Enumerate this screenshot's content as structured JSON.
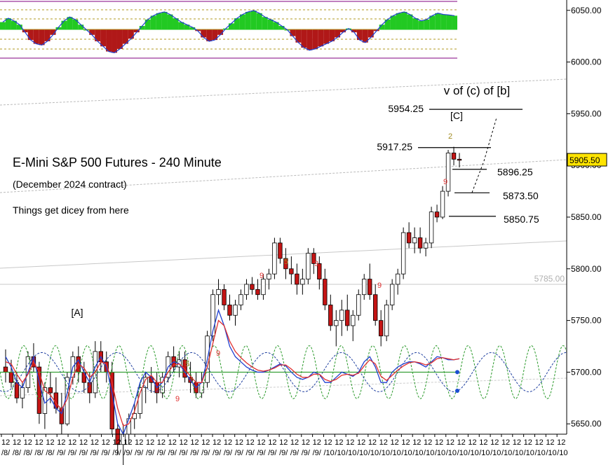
{
  "chart_data": {
    "type": "candlestick",
    "title": "E-Mini S&P 500 Futures - 240 Minute",
    "subtitle": "(December 2024 contract)",
    "note": "Things get dicey from here",
    "ylim": [
      5640,
      6060
    ],
    "y_ticks": [
      6050,
      6000,
      5950,
      5900,
      5850,
      5800,
      5750,
      5700,
      5650
    ],
    "y_tick_labels": [
      "6050.00",
      "6000.00",
      "5950.00",
      "5900.00",
      "5850.00",
      "5800.00",
      "5750.00",
      "5700.00",
      "5650.00"
    ],
    "current_price": "5905.50",
    "reference_level": {
      "value": 5785,
      "label": "5785.00"
    },
    "x_tick_labels": [
      "12/8/",
      "12/8/",
      "12/8/",
      "12/8/",
      "12/8/",
      "12/9/",
      "12/9/",
      "12/9/",
      "12/9/",
      "12/9/",
      "12/9/",
      "12/9/",
      "12/9/",
      "12/9/",
      "12/9/",
      "12/9/",
      "12/9/",
      "12/9/",
      "12/9/",
      "12/9/",
      "12/9/",
      "12/9/",
      "12/9/",
      "12/9/",
      "12/9/",
      "12/9/",
      "12/9/",
      "12/9/",
      "12/9/",
      "12/10",
      "12/10",
      "12/10",
      "12/10",
      "12/10",
      "12/10",
      "12/10",
      "12/10",
      "12/10",
      "12/10",
      "12/10",
      "12/10",
      "12/10",
      "12/10",
      "12/10",
      "12/10",
      "12/10",
      "12/10",
      "12/10",
      "12/10",
      "12/10",
      "12/10"
    ],
    "wave_labels": [
      {
        "text": "v of (c) of [b]"
      },
      {
        "text": "[C]"
      },
      {
        "text": "[A]"
      }
    ],
    "target_levels": [
      {
        "label": "5954.25",
        "value": 5954.25
      },
      {
        "label": "5917.25",
        "value": 5917.25
      },
      {
        "label": "5896.25",
        "value": 5896.25
      },
      {
        "label": "5873.50",
        "value": 5873.5
      },
      {
        "label": "5850.75",
        "value": 5850.75
      }
    ],
    "td_counts": [
      {
        "text": "9",
        "color": "#e03030"
      },
      {
        "text": "9",
        "color": "#e03030"
      },
      {
        "text": "5",
        "color": "#a08a20"
      },
      {
        "text": "9",
        "color": "#e03030"
      },
      {
        "text": "2",
        "color": "#a08a20"
      },
      {
        "text": "9",
        "color": "#e03030"
      },
      {
        "text": "9",
        "color": "#e03030"
      },
      {
        "text": "5",
        "color": "#a08a20"
      },
      {
        "text": "9",
        "color": "#e03030"
      }
    ],
    "candles": [
      [
        5705,
        5722,
        5690,
        5700
      ],
      [
        5700,
        5712,
        5685,
        5690
      ],
      [
        5690,
        5700,
        5670,
        5675
      ],
      [
        5675,
        5690,
        5665,
        5685
      ],
      [
        5685,
        5720,
        5680,
        5715
      ],
      [
        5715,
        5728,
        5700,
        5705
      ],
      [
        5705,
        5710,
        5650,
        5660
      ],
      [
        5660,
        5690,
        5645,
        5685
      ],
      [
        5685,
        5700,
        5670,
        5680
      ],
      [
        5680,
        5695,
        5660,
        5665
      ],
      [
        5665,
        5680,
        5640,
        5650
      ],
      [
        5650,
        5700,
        5648,
        5695
      ],
      [
        5695,
        5720,
        5688,
        5715
      ],
      [
        5715,
        5725,
        5690,
        5700
      ],
      [
        5700,
        5710,
        5680,
        5690
      ],
      [
        5690,
        5700,
        5670,
        5680
      ],
      [
        5680,
        5730,
        5675,
        5720
      ],
      [
        5720,
        5730,
        5700,
        5710
      ],
      [
        5710,
        5720,
        5690,
        5700
      ],
      [
        5700,
        5710,
        5640,
        5645
      ],
      [
        5645,
        5650,
        5620,
        5630
      ],
      [
        5630,
        5650,
        5600,
        5640
      ],
      [
        5640,
        5660,
        5630,
        5655
      ],
      [
        5655,
        5670,
        5645,
        5660
      ],
      [
        5660,
        5690,
        5655,
        5685
      ],
      [
        5685,
        5700,
        5670,
        5695
      ],
      [
        5695,
        5705,
        5680,
        5690
      ],
      [
        5690,
        5700,
        5670,
        5680
      ],
      [
        5680,
        5700,
        5675,
        5695
      ],
      [
        5695,
        5720,
        5690,
        5715
      ],
      [
        5715,
        5725,
        5700,
        5705
      ],
      [
        5705,
        5720,
        5695,
        5712
      ],
      [
        5712,
        5720,
        5690,
        5695
      ],
      [
        5695,
        5710,
        5680,
        5690
      ],
      [
        5690,
        5700,
        5675,
        5680
      ],
      [
        5680,
        5700,
        5675,
        5690
      ],
      [
        5690,
        5740,
        5685,
        5735
      ],
      [
        5735,
        5780,
        5730,
        5775
      ],
      [
        5775,
        5790,
        5765,
        5780
      ],
      [
        5780,
        5785,
        5760,
        5765
      ],
      [
        5765,
        5775,
        5750,
        5755
      ],
      [
        5755,
        5770,
        5745,
        5765
      ],
      [
        5765,
        5780,
        5760,
        5775
      ],
      [
        5775,
        5790,
        5770,
        5785
      ],
      [
        5785,
        5792,
        5775,
        5780
      ],
      [
        5780,
        5790,
        5770,
        5775
      ],
      [
        5775,
        5795,
        5770,
        5790
      ],
      [
        5790,
        5800,
        5780,
        5795
      ],
      [
        5795,
        5830,
        5790,
        5825
      ],
      [
        5825,
        5830,
        5805,
        5810
      ],
      [
        5810,
        5820,
        5790,
        5800
      ],
      [
        5800,
        5812,
        5785,
        5795
      ],
      [
        5795,
        5805,
        5775,
        5785
      ],
      [
        5785,
        5800,
        5775,
        5790
      ],
      [
        5790,
        5820,
        5785,
        5815
      ],
      [
        5815,
        5820,
        5795,
        5805
      ],
      [
        5805,
        5812,
        5780,
        5790
      ],
      [
        5790,
        5800,
        5760,
        5765
      ],
      [
        5765,
        5775,
        5740,
        5745
      ],
      [
        5745,
        5760,
        5725,
        5750
      ],
      [
        5750,
        5770,
        5735,
        5760
      ],
      [
        5760,
        5775,
        5740,
        5745
      ],
      [
        5745,
        5760,
        5730,
        5755
      ],
      [
        5755,
        5780,
        5750,
        5775
      ],
      [
        5775,
        5795,
        5770,
        5790
      ],
      [
        5790,
        5805,
        5770,
        5775
      ],
      [
        5775,
        5785,
        5745,
        5750
      ],
      [
        5750,
        5760,
        5725,
        5735
      ],
      [
        5735,
        5770,
        5730,
        5765
      ],
      [
        5765,
        5790,
        5760,
        5785
      ],
      [
        5785,
        5800,
        5775,
        5795
      ],
      [
        5795,
        5840,
        5790,
        5835
      ],
      [
        5835,
        5845,
        5820,
        5825
      ],
      [
        5825,
        5840,
        5815,
        5830
      ],
      [
        5830,
        5840,
        5815,
        5820
      ],
      [
        5820,
        5830,
        5812,
        5825
      ],
      [
        5825,
        5860,
        5820,
        5855
      ],
      [
        5855,
        5862,
        5845,
        5850
      ],
      [
        5850,
        5880,
        5848,
        5875
      ],
      [
        5875,
        5915,
        5870,
        5912
      ],
      [
        5912,
        5918,
        5900,
        5906
      ],
      [
        5906,
        5912,
        5898,
        5905
      ]
    ],
    "series": [
      {
        "name": "",
        "color": "#2040d0",
        "values": [
          5715,
          5705,
          5690,
          5685,
          5700,
          5715,
          5690,
          5670,
          5675,
          5665,
          5660,
          5680,
          5705,
          5712,
          5700,
          5690,
          5705,
          5715,
          5705,
          5680,
          5650,
          5640,
          5655,
          5670,
          5690,
          5700,
          5695,
          5685,
          5690,
          5705,
          5710,
          5708,
          5700,
          5692,
          5685,
          5690,
          5712,
          5740,
          5760,
          5745,
          5725,
          5715,
          5710,
          5705,
          5702,
          5700,
          5700,
          5702,
          5705,
          5708,
          5706,
          5700,
          5695,
          5693,
          5695,
          5700,
          5698,
          5690,
          5690,
          5695,
          5700,
          5698,
          5696,
          5700,
          5710,
          5715,
          5705,
          5690,
          5690,
          5700,
          5705,
          5708,
          5710,
          5710,
          5708,
          5705,
          5710,
          5715,
          5714,
          5712,
          5712,
          5713
        ]
      },
      {
        "name": "",
        "color": "#e03030",
        "values": [
          5710,
          5708,
          5698,
          5690,
          5698,
          5710,
          5700,
          5682,
          5678,
          5670,
          5664,
          5674,
          5695,
          5708,
          5704,
          5695,
          5700,
          5710,
          5708,
          5690,
          5665,
          5648,
          5650,
          5662,
          5680,
          5693,
          5697,
          5690,
          5690,
          5700,
          5707,
          5708,
          5703,
          5696,
          5690,
          5690,
          5705,
          5728,
          5750,
          5745,
          5730,
          5720,
          5714,
          5709,
          5705,
          5702,
          5701,
          5702,
          5704,
          5707,
          5707,
          5703,
          5698,
          5695,
          5695,
          5698,
          5698,
          5693,
          5691,
          5693,
          5697,
          5698,
          5697,
          5699,
          5706,
          5712,
          5708,
          5696,
          5692,
          5697,
          5702,
          5706,
          5709,
          5710,
          5709,
          5707,
          5709,
          5713,
          5714,
          5713,
          5712,
          5713
        ]
      }
    ],
    "oscillator": {
      "ylim": [
        -100,
        100
      ],
      "values": [
        30,
        45,
        35,
        20,
        -10,
        -40,
        -55,
        -60,
        -45,
        -20,
        10,
        35,
        50,
        40,
        20,
        0,
        -20,
        -45,
        -65,
        -85,
        -90,
        -75,
        -55,
        -35,
        -10,
        15,
        40,
        55,
        65,
        70,
        60,
        45,
        30,
        20,
        10,
        -5,
        -30,
        -45,
        -40,
        -20,
        5,
        25,
        45,
        60,
        70,
        75,
        65,
        50,
        40,
        30,
        15,
        0,
        -25,
        -50,
        -70,
        -80,
        -75,
        -65,
        -55,
        -45,
        -30,
        -10,
        5,
        -10,
        -40,
        -50,
        -30,
        -5,
        20,
        40,
        55,
        65,
        70,
        60,
        45,
        35,
        40,
        55,
        65,
        60,
        58,
        55
      ]
    }
  }
}
